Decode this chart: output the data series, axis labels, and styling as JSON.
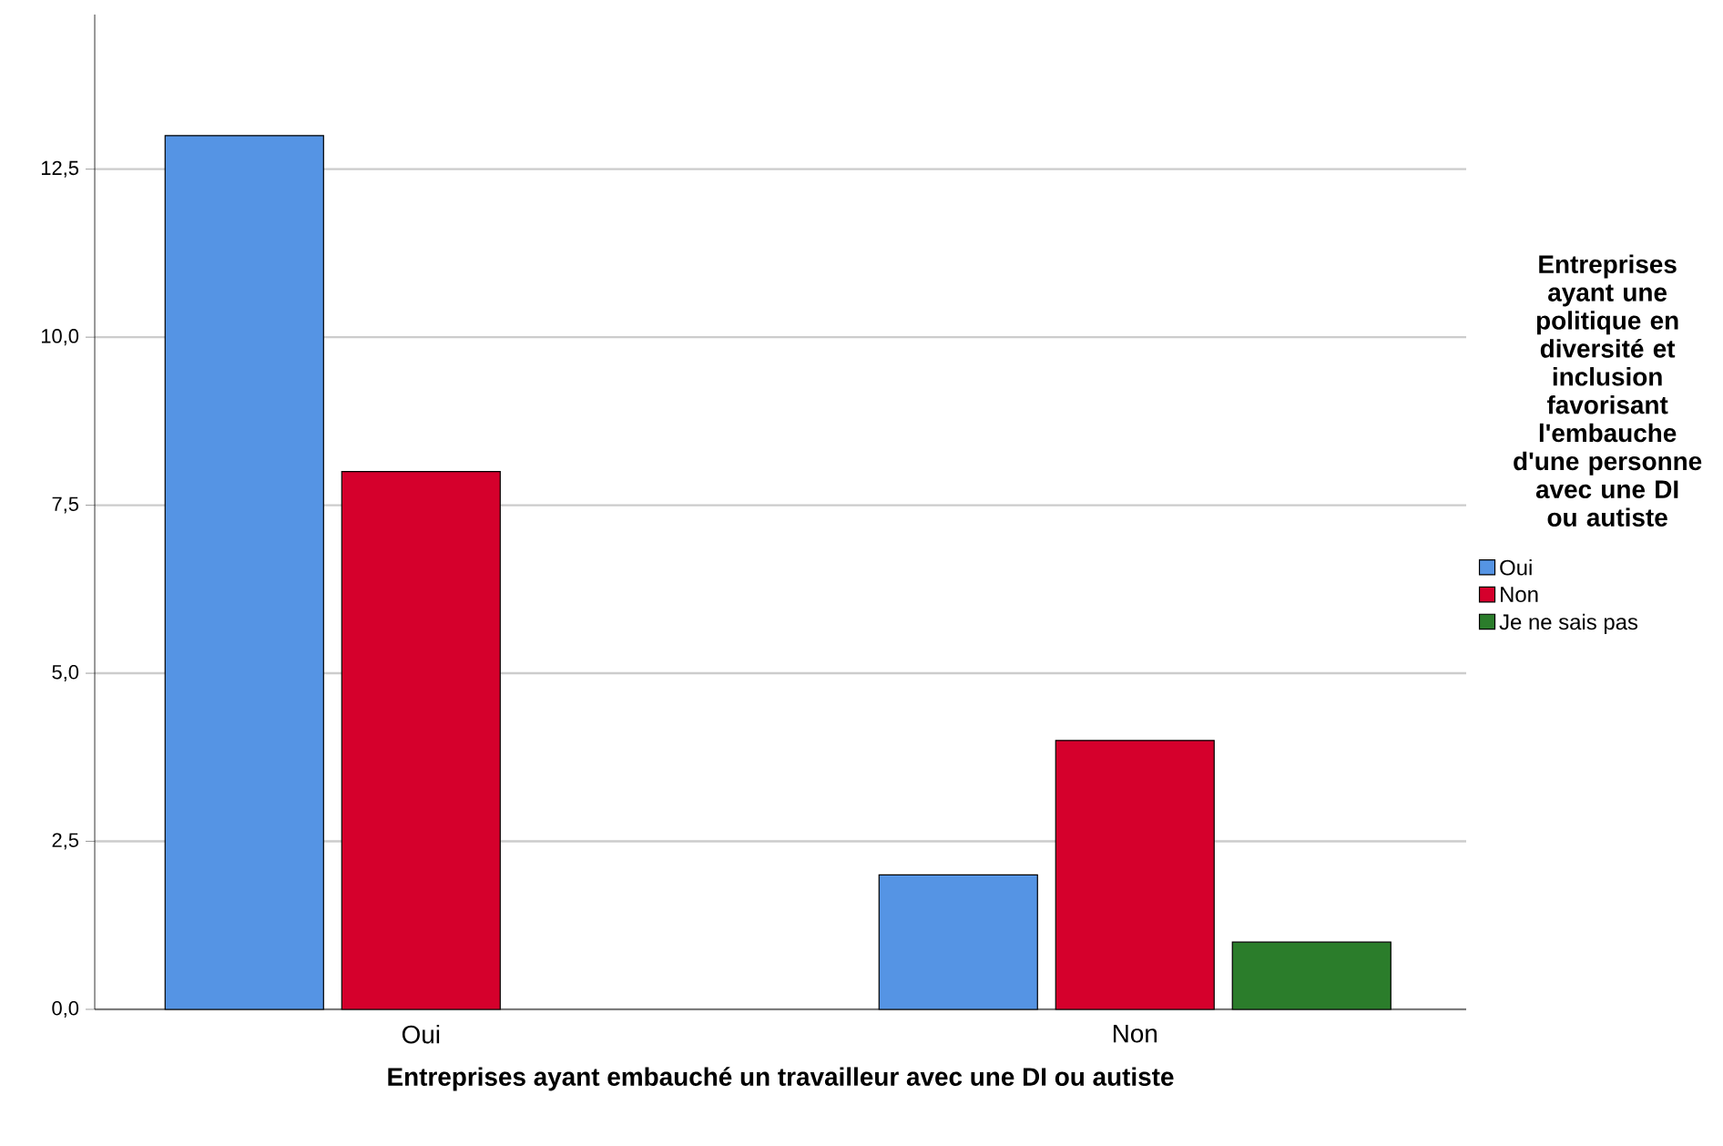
{
  "chart_data": {
    "type": "bar",
    "categories": [
      "Oui",
      "Non"
    ],
    "xlabel": "Entreprises ayant embauché un travailleur avec une DI ou autiste",
    "legend_title": "Entreprises ayant une politique en diversité et inclusion favorisant l'embauche d'une personne avec une DI ou autiste",
    "series": [
      {
        "name": "Oui",
        "color": "#5594e4",
        "values": [
          13,
          2
        ]
      },
      {
        "name": "Non",
        "color": "#d5002c",
        "values": [
          8,
          4
        ]
      },
      {
        "name": "Je ne sais pas",
        "color": "#2b7d2b",
        "values": [
          null,
          1
        ]
      }
    ],
    "ylim": [
      0,
      14.8
    ],
    "yticks": [
      {
        "value": 0,
        "label": "0,0"
      },
      {
        "value": 2.5,
        "label": "2,5"
      },
      {
        "value": 5,
        "label": "5,0"
      },
      {
        "value": 7.5,
        "label": "7,5"
      },
      {
        "value": 10,
        "label": "10,0"
      },
      {
        "value": 12.5,
        "label": "12,5"
      }
    ],
    "grid": "y",
    "legend": "right"
  }
}
